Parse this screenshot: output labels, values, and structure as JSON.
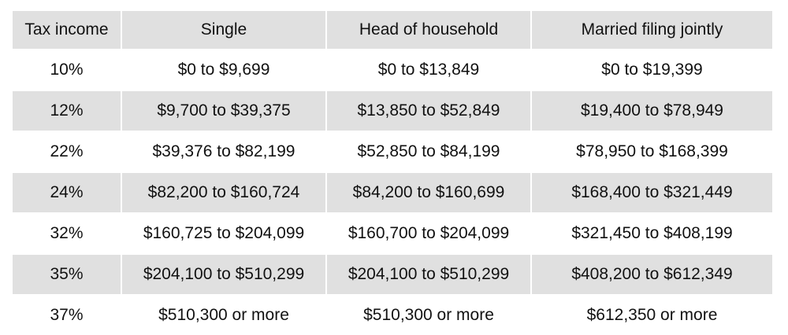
{
  "table": {
    "headers": [
      "Tax income",
      "Single",
      "Head of household",
      "Married filing jointly"
    ],
    "rows": [
      [
        "10%",
        "$0 to $9,699",
        "$0 to $13,849",
        "$0 to $19,399"
      ],
      [
        "12%",
        "$9,700 to $39,375",
        "$13,850 to $52,849",
        "$19,400 to $78,949"
      ],
      [
        "22%",
        "$39,376 to $82,199",
        "$52,850 to $84,199",
        "$78,950 to $168,399"
      ],
      [
        "24%",
        "$82,200 to $160,724",
        "$84,200 to $160,699",
        "$168,400 to $321,449"
      ],
      [
        "32%",
        "$160,725 to $204,099",
        "$160,700 to $204,099",
        "$321,450 to $408,199"
      ],
      [
        "35%",
        "$204,100 to $510,299",
        "$204,100 to $510,299",
        "$408,200 to $612,349"
      ],
      [
        "37%",
        "$510,300 or more",
        "$510,300 or more",
        "$612,350 or more"
      ]
    ],
    "shade_color": "#e0e0e0"
  }
}
